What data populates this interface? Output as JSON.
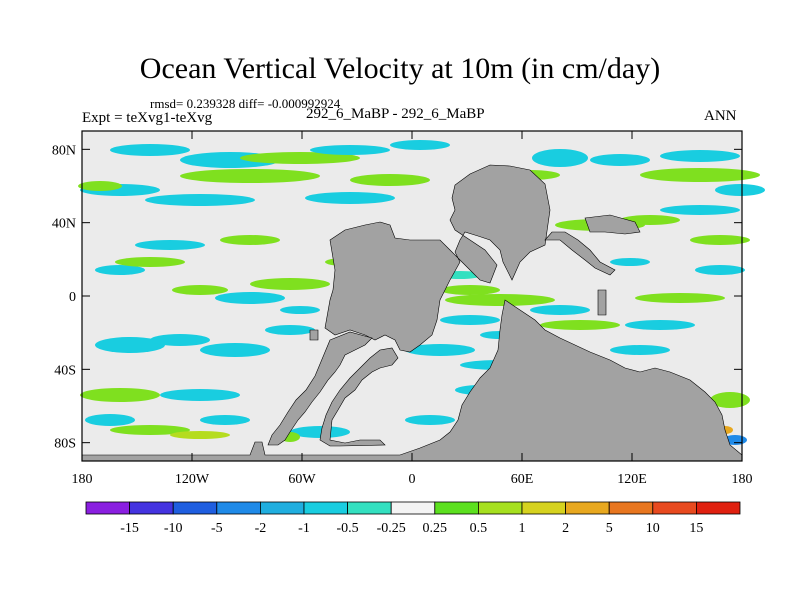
{
  "header": {
    "title": "Ocean Vertical Velocity at 10m (in cm/day)",
    "stats": "rmsd= 0.239328 diff= -0.000992924",
    "expt": "Expt = teXvg1-teXvg",
    "case_label": "292_6_MaBP - 292_6_MaBP",
    "season": "ANN"
  },
  "chart_data": {
    "type": "contour-map",
    "title": "Ocean Vertical Velocity at 10m (in cm/day)",
    "xlim": [
      -180,
      180
    ],
    "ylim": [
      -90,
      90
    ],
    "x_ticks": [
      {
        "value": -180,
        "label": "180"
      },
      {
        "value": -120,
        "label": "120W"
      },
      {
        "value": -60,
        "label": "60W"
      },
      {
        "value": 0,
        "label": "0"
      },
      {
        "value": 60,
        "label": "60E"
      },
      {
        "value": 120,
        "label": "120E"
      },
      {
        "value": 180,
        "label": "180"
      }
    ],
    "y_ticks": [
      {
        "value": 80,
        "label": "80N"
      },
      {
        "value": 40,
        "label": "40N"
      },
      {
        "value": 0,
        "label": "0"
      },
      {
        "value": -40,
        "label": "40S"
      },
      {
        "value": -80,
        "label": "80S"
      }
    ],
    "colorbar": {
      "labels": [
        "-15",
        "-10",
        "-5",
        "-2",
        "-1",
        "-0.5",
        "-0.25",
        "0.25",
        "0.5",
        "1",
        "2",
        "5",
        "10",
        "15"
      ],
      "colors": [
        "#8a1fe0",
        "#4433e0",
        "#1f5ee0",
        "#1f8ae8",
        "#20aedf",
        "#19cde0",
        "#33e0c0",
        "#f4f4f4",
        "#5ce01f",
        "#a6e01f",
        "#d6d21f",
        "#e8a81f",
        "#e8761f",
        "#e84a1f",
        "#e0200f"
      ]
    },
    "colors": {
      "field": "#ebebeb",
      "land": "#a2a2a2",
      "cyan": "#19cde0",
      "teal": "#33e0c0",
      "green": "#7fe01f",
      "yellow_green": "#b5dc1f",
      "orange": "#e8a81f",
      "blue": "#1f8ae8"
    }
  }
}
